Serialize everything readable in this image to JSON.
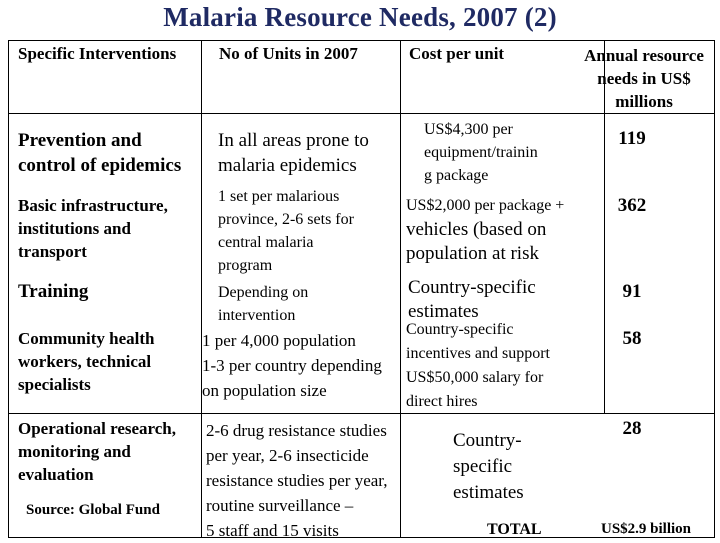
{
  "title": "Malaria Resource Needs, 2007 (2)",
  "header": {
    "col1": "Specific Interventions",
    "col2": "No of Units in 2007",
    "col3": "Cost per unit",
    "col4_lines": [
      "Annual resource",
      "needs in US$",
      "millions"
    ]
  },
  "rows": [
    {
      "intervention": [
        "Prevention and",
        "control of epidemics"
      ],
      "units": [
        "In all areas prone to",
        "malaria epidemics"
      ],
      "cost": [
        "US$4,300 per",
        "equipment/trainin",
        "g package"
      ],
      "annual": "119"
    },
    {
      "intervention": [
        "Basic infrastructure,",
        "institutions and",
        "transport"
      ],
      "units": [
        "1 set per malarious",
        "province, 2-6 sets for",
        "central malaria",
        "program"
      ],
      "cost": [
        "US$2,000 per package +",
        "vehicles (based on",
        "population at risk"
      ],
      "annual": "362"
    },
    {
      "intervention": [
        "Training"
      ],
      "units": [
        "Depending on",
        "intervention"
      ],
      "cost": [
        "Country-specific",
        "estimates"
      ],
      "annual": "91"
    },
    {
      "intervention": [
        "Community health",
        "workers, technical",
        "specialists"
      ],
      "units": [
        "1 per 4,000 population",
        "1-3 per country depending",
        "on population size"
      ],
      "cost": [
        "Country-specific",
        "incentives and support",
        "US$50,000 salary for",
        "direct hires"
      ],
      "annual": "58"
    },
    {
      "intervention": [
        "Operational research,",
        "monitoring and",
        "evaluation"
      ],
      "units": [
        "2-6 drug resistance studies",
        "per year, 2-6 insecticide",
        "resistance studies per year,",
        "routine surveillance –",
        "5 staff and 15 visits"
      ],
      "cost": [
        "Country-",
        "specific",
        "estimates"
      ],
      "annual": "28"
    }
  ],
  "source": "Source: Global Fund",
  "total_label": "TOTAL",
  "total_value": "US$2.9 billion"
}
